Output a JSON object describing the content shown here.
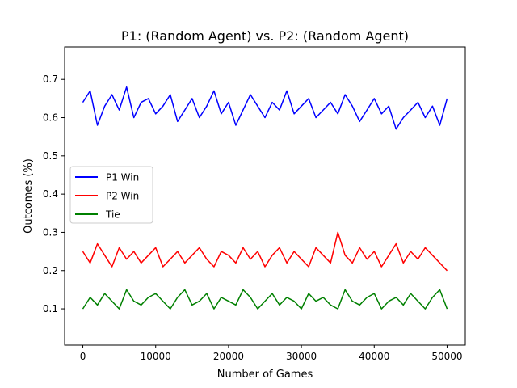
{
  "chart_data": {
    "type": "line",
    "title": "P1: (Random Agent) vs. P2: (Random Agent)",
    "xlabel": "Number of Games",
    "ylabel": "Outcomes (%)",
    "xlim": [
      -2500,
      52500
    ],
    "ylim": [
      0.005,
      0.785
    ],
    "grid": false,
    "legend_position": "center-left",
    "x_ticks": [
      {
        "value": 0,
        "label": "0"
      },
      {
        "value": 10000,
        "label": "10000"
      },
      {
        "value": 20000,
        "label": "20000"
      },
      {
        "value": 30000,
        "label": "30000"
      },
      {
        "value": 40000,
        "label": "40000"
      },
      {
        "value": 50000,
        "label": "50000"
      }
    ],
    "y_ticks": [
      {
        "value": 0.1,
        "label": "0.1"
      },
      {
        "value": 0.2,
        "label": "0.2"
      },
      {
        "value": 0.3,
        "label": "0.3"
      },
      {
        "value": 0.4,
        "label": "0.4"
      },
      {
        "value": 0.5,
        "label": "0.5"
      },
      {
        "value": 0.6,
        "label": "0.6"
      },
      {
        "value": 0.7,
        "label": "0.7"
      }
    ],
    "series": [
      {
        "name": "P1 Win",
        "color": "#0000ff",
        "x": [
          0,
          1000,
          2000,
          3000,
          4000,
          5000,
          6000,
          7000,
          8000,
          9000,
          10000,
          11000,
          12000,
          13000,
          14000,
          15000,
          16000,
          17000,
          18000,
          19000,
          20000,
          21000,
          22000,
          23000,
          24000,
          25000,
          26000,
          27000,
          28000,
          29000,
          30000,
          31000,
          32000,
          33000,
          34000,
          35000,
          36000,
          37000,
          38000,
          39000,
          40000,
          41000,
          42000,
          43000,
          44000,
          45000,
          46000,
          47000,
          48000,
          49000,
          50000
        ],
        "values": [
          0.64,
          0.67,
          0.58,
          0.63,
          0.66,
          0.62,
          0.68,
          0.6,
          0.64,
          0.65,
          0.61,
          0.63,
          0.66,
          0.59,
          0.62,
          0.65,
          0.6,
          0.63,
          0.67,
          0.61,
          0.64,
          0.58,
          0.62,
          0.66,
          0.63,
          0.6,
          0.64,
          0.62,
          0.67,
          0.61,
          0.63,
          0.65,
          0.6,
          0.62,
          0.64,
          0.61,
          0.66,
          0.63,
          0.59,
          0.62,
          0.65,
          0.61,
          0.63,
          0.57,
          0.6,
          0.62,
          0.64,
          0.6,
          0.63,
          0.58,
          0.65
        ]
      },
      {
        "name": "P2 Win",
        "color": "#ff0000",
        "x": [
          0,
          1000,
          2000,
          3000,
          4000,
          5000,
          6000,
          7000,
          8000,
          9000,
          10000,
          11000,
          12000,
          13000,
          14000,
          15000,
          16000,
          17000,
          18000,
          19000,
          20000,
          21000,
          22000,
          23000,
          24000,
          25000,
          26000,
          27000,
          28000,
          29000,
          30000,
          31000,
          32000,
          33000,
          34000,
          35000,
          36000,
          37000,
          38000,
          39000,
          40000,
          41000,
          42000,
          43000,
          44000,
          45000,
          46000,
          47000,
          48000,
          49000,
          50000
        ],
        "values": [
          0.25,
          0.22,
          0.27,
          0.24,
          0.21,
          0.26,
          0.23,
          0.25,
          0.22,
          0.24,
          0.26,
          0.21,
          0.23,
          0.25,
          0.22,
          0.24,
          0.26,
          0.23,
          0.21,
          0.25,
          0.24,
          0.22,
          0.26,
          0.23,
          0.25,
          0.21,
          0.24,
          0.26,
          0.22,
          0.25,
          0.23,
          0.21,
          0.26,
          0.24,
          0.22,
          0.3,
          0.24,
          0.22,
          0.26,
          0.23,
          0.25,
          0.21,
          0.24,
          0.27,
          0.22,
          0.25,
          0.23,
          0.26,
          0.24,
          0.22,
          0.2
        ]
      },
      {
        "name": "Tie",
        "color": "#008000",
        "x": [
          0,
          1000,
          2000,
          3000,
          4000,
          5000,
          6000,
          7000,
          8000,
          9000,
          10000,
          11000,
          12000,
          13000,
          14000,
          15000,
          16000,
          17000,
          18000,
          19000,
          20000,
          21000,
          22000,
          23000,
          24000,
          25000,
          26000,
          27000,
          28000,
          29000,
          30000,
          31000,
          32000,
          33000,
          34000,
          35000,
          36000,
          37000,
          38000,
          39000,
          40000,
          41000,
          42000,
          43000,
          44000,
          45000,
          46000,
          47000,
          48000,
          49000,
          50000
        ],
        "values": [
          0.1,
          0.13,
          0.11,
          0.14,
          0.12,
          0.1,
          0.15,
          0.12,
          0.11,
          0.13,
          0.14,
          0.12,
          0.1,
          0.13,
          0.15,
          0.11,
          0.12,
          0.14,
          0.1,
          0.13,
          0.12,
          0.11,
          0.15,
          0.13,
          0.1,
          0.12,
          0.14,
          0.11,
          0.13,
          0.12,
          0.1,
          0.14,
          0.12,
          0.13,
          0.11,
          0.1,
          0.15,
          0.12,
          0.11,
          0.13,
          0.14,
          0.1,
          0.12,
          0.13,
          0.11,
          0.14,
          0.12,
          0.1,
          0.13,
          0.15,
          0.1
        ]
      }
    ]
  }
}
